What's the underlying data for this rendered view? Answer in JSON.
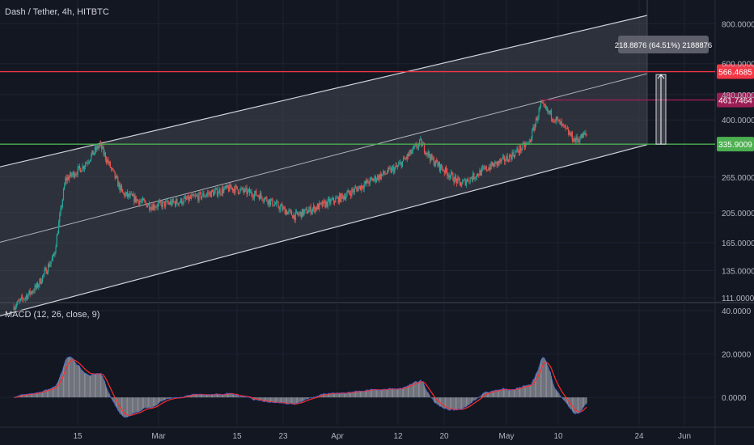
{
  "header": {
    "title": "Dash / Tether, 4h, HITBTC"
  },
  "macd_panel": {
    "title": "MACD (12, 26, close, 9)"
  },
  "colors": {
    "background": "#131722",
    "grid": "#1f2330",
    "axis_text": "#b2b5be",
    "candle_up": "#26a69a",
    "candle_down": "#ef5350",
    "channel_fill": "#5d606b",
    "channel_line": "#cfd2d9",
    "resistance_line": "#f23645",
    "mid_line": "#9c1e55",
    "support_line": "#4caf50",
    "macd_line": "#2962ff",
    "signal_line": "#ff2d2d",
    "histogram": "#9598a1",
    "measure_box": "#b2b5be"
  },
  "chart_data": [
    {
      "type": "candlestick",
      "title": "Dash / Tether, 4h, HITBTC",
      "scale": "log",
      "ylim": [
        100,
        870
      ],
      "y_ticks": [
        "800.0000",
        "600.0000",
        "480.0000",
        "400.0000",
        "265.0000",
        "205.0000",
        "165.0000",
        "135.0000",
        "111.0000"
      ],
      "x_ticks": [
        "15",
        "Mar",
        "15",
        "23",
        "Apr",
        "12",
        "20",
        "May",
        "10",
        "24",
        "Jun"
      ],
      "grid": true,
      "levels": [
        {
          "name": "resistance",
          "label": "566.4685",
          "value": 566.4685
        },
        {
          "name": "mid",
          "label": "461.7464",
          "value": 461.7464
        },
        {
          "name": "support",
          "label": "335.9009",
          "value": 335.9009
        }
      ],
      "measure": {
        "label": "218.8876 (64.51%) 2188876",
        "from": 335.9009,
        "to": 554.79
      },
      "anchors": [
        {
          "date": "Feb 4",
          "price": 104
        },
        {
          "date": "Feb 8",
          "price": 120
        },
        {
          "date": "Feb 11",
          "price": 150
        },
        {
          "date": "Feb 13",
          "price": 260
        },
        {
          "date": "Feb 16",
          "price": 285
        },
        {
          "date": "Feb 19",
          "price": 335
        },
        {
          "date": "Feb 23",
          "price": 235
        },
        {
          "date": "Feb 28",
          "price": 215
        },
        {
          "date": "Mar 5",
          "price": 222
        },
        {
          "date": "Mar 10",
          "price": 235
        },
        {
          "date": "Mar 14",
          "price": 245
        },
        {
          "date": "Mar 19",
          "price": 232
        },
        {
          "date": "Mar 25",
          "price": 200
        },
        {
          "date": "Apr 2",
          "price": 228
        },
        {
          "date": "Apr 8",
          "price": 262
        },
        {
          "date": "Apr 12",
          "price": 285
        },
        {
          "date": "Apr 16",
          "price": 340
        },
        {
          "date": "Apr 18",
          "price": 300
        },
        {
          "date": "Apr 23",
          "price": 252
        },
        {
          "date": "Apr 28",
          "price": 285
        },
        {
          "date": "May 1",
          "price": 302
        },
        {
          "date": "May 5",
          "price": 340
        },
        {
          "date": "May 7",
          "price": 445
        },
        {
          "date": "May 10",
          "price": 395
        },
        {
          "date": "May 13",
          "price": 345
        },
        {
          "date": "May 15",
          "price": 362
        }
      ],
      "channel": {
        "upper": [
          {
            "date": "Feb 4",
            "price": 292
          },
          {
            "date": "May 28",
            "price": 870
          }
        ],
        "middle": [
          {
            "date": "Feb 4",
            "price": 170
          },
          {
            "date": "May 27",
            "price": 567
          }
        ],
        "lower": [
          {
            "date": "Feb 4",
            "price": 100
          },
          {
            "date": "May 27",
            "price": 340
          }
        ]
      }
    },
    {
      "type": "macd",
      "title": "MACD (12, 26, close, 9)",
      "ylim": [
        -13,
        43
      ],
      "y_ticks": [
        "40.0000",
        "20.0000",
        "0.0000"
      ]
    }
  ]
}
